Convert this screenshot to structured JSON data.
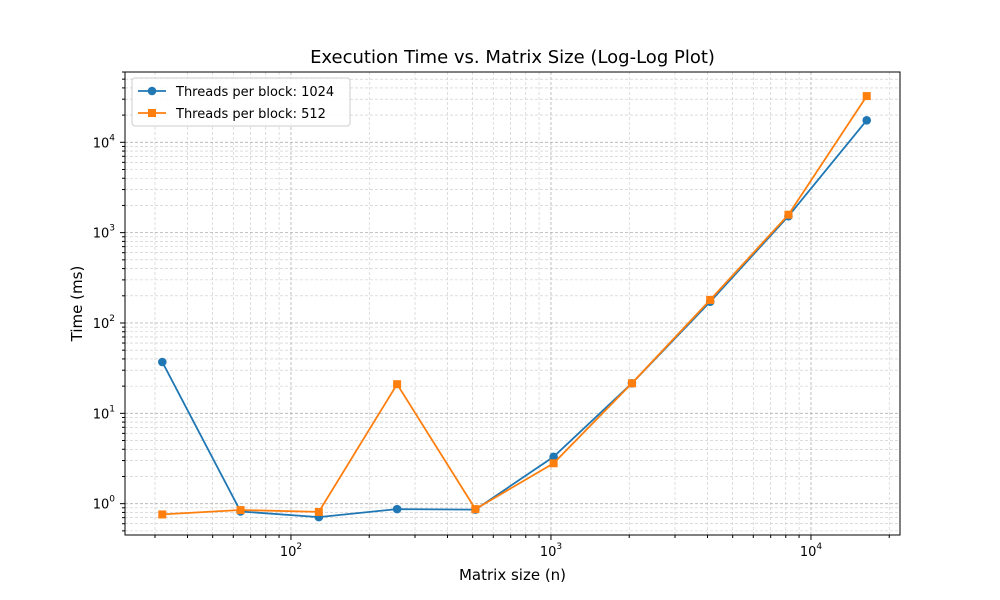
{
  "chart_data": {
    "type": "line",
    "title": "Execution Time vs. Matrix Size (Log-Log Plot)",
    "xlabel": "Matrix size (n)",
    "ylabel": "Time (ms)",
    "xscale": "log",
    "yscale": "log",
    "xlim": [
      23,
      22000
    ],
    "ylim": [
      0.45,
      60000
    ],
    "grid": "major and minor, dashed",
    "legend_position": "top-left",
    "x_ticks": [
      {
        "value": 100,
        "base": "10",
        "exp": "2"
      },
      {
        "value": 1000,
        "base": "10",
        "exp": "3"
      },
      {
        "value": 10000,
        "base": "10",
        "exp": "4"
      }
    ],
    "y_ticks": [
      {
        "value": 1,
        "base": "10",
        "exp": "0"
      },
      {
        "value": 10,
        "base": "10",
        "exp": "1"
      },
      {
        "value": 100,
        "base": "10",
        "exp": "2"
      },
      {
        "value": 1000,
        "base": "10",
        "exp": "3"
      },
      {
        "value": 10000,
        "base": "10",
        "exp": "4"
      }
    ],
    "x": [
      32,
      64,
      128,
      256,
      512,
      1024,
      2048,
      4096,
      8192,
      16384
    ],
    "series": [
      {
        "name": "Threads per block: 1024",
        "color": "#1f77b4",
        "marker": "circle",
        "values": [
          37,
          0.82,
          0.71,
          0.87,
          0.86,
          3.3,
          21.5,
          172,
          1520,
          17500
        ]
      },
      {
        "name": "Threads per block: 512",
        "color": "#ff7f0e",
        "marker": "square",
        "values": [
          0.76,
          0.85,
          0.81,
          21,
          0.87,
          2.8,
          21.5,
          180,
          1580,
          32500
        ]
      }
    ]
  }
}
